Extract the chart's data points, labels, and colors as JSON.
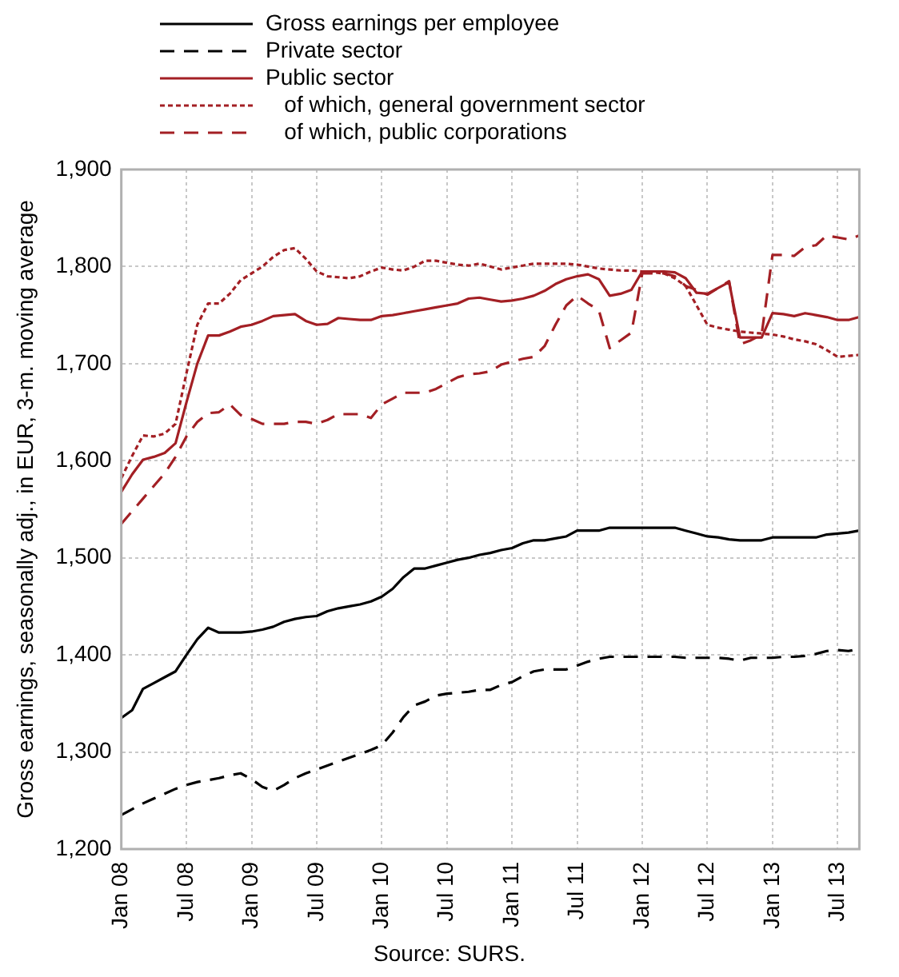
{
  "chart_data": {
    "type": "line",
    "ylabel": "Gross earnings, seasonally adj., in EUR, 3-m. moving average",
    "annotations": [
      "Source: SURS."
    ],
    "categories": [
      "Jan 08",
      null,
      null,
      null,
      null,
      null,
      "Jul 08",
      null,
      null,
      null,
      null,
      null,
      "Jan 09",
      null,
      null,
      null,
      null,
      null,
      "Jul 09",
      null,
      null,
      null,
      null,
      null,
      "Jan 10",
      null,
      null,
      null,
      null,
      null,
      "Jul 10",
      null,
      null,
      null,
      null,
      null,
      "Jan 11",
      null,
      null,
      null,
      null,
      null,
      "Jul 11",
      null,
      null,
      null,
      null,
      null,
      "Jan 12",
      null,
      null,
      null,
      null,
      null,
      "Jul 12",
      null,
      null,
      null,
      null,
      null,
      "Jan 13",
      null,
      null,
      null,
      null,
      null,
      "Jul 13",
      null,
      null
    ],
    "ylim": [
      1200,
      1900
    ],
    "yticks": [
      {
        "value": 1200,
        "label": "1,200"
      },
      {
        "value": 1300,
        "label": "1,300"
      },
      {
        "value": 1400,
        "label": "1,400"
      },
      {
        "value": 1500,
        "label": "1,500"
      },
      {
        "value": 1600,
        "label": "1,600"
      },
      {
        "value": 1700,
        "label": "1,700"
      },
      {
        "value": 1800,
        "label": "1,800"
      },
      {
        "value": 1900,
        "label": "1,900"
      }
    ],
    "grid": true,
    "legend": "top left",
    "marker": "none",
    "series": [
      {
        "name": "Gross earnings per employee",
        "color": "#000000",
        "line_style": "solid",
        "values": [
          1335,
          1343,
          1365,
          1371,
          1377,
          1383,
          1400,
          1416,
          1428,
          1423,
          1423,
          1423,
          1424,
          1426,
          1429,
          1434,
          1437,
          1439,
          1440,
          1445,
          1448,
          1450,
          1452,
          1455,
          1460,
          1468,
          1480,
          1489,
          1489,
          1492,
          1495,
          1498,
          1500,
          1503,
          1505,
          1508,
          1510,
          1515,
          1518,
          1518,
          1520,
          1522,
          1528,
          1528,
          1528,
          1531,
          1531,
          1531,
          1531,
          1531,
          1531,
          1531,
          1528,
          1525,
          1522,
          1521,
          1519,
          1518,
          1518,
          1518,
          1521,
          1521,
          1521,
          1521,
          1521,
          1524,
          1525,
          1526,
          1528
        ]
      },
      {
        "name": "Private sector",
        "color": "#000000",
        "line_style": "dashed",
        "values": [
          1235,
          1241,
          1247,
          1252,
          1257,
          1262,
          1266,
          1269,
          1271,
          1273,
          1276,
          1278,
          1272,
          1264,
          1260,
          1266,
          1273,
          1278,
          1282,
          1286,
          1290,
          1294,
          1298,
          1302,
          1307,
          1320,
          1336,
          1348,
          1352,
          1358,
          1360,
          1361,
          1362,
          1364,
          1364,
          1369,
          1372,
          1378,
          1383,
          1385,
          1385,
          1385,
          1389,
          1393,
          1396,
          1398,
          1398,
          1398,
          1398,
          1398,
          1398,
          1398,
          1397,
          1397,
          1397,
          1397,
          1396,
          1394,
          1397,
          1397,
          1397,
          1398,
          1398,
          1399,
          1401,
          1404,
          1405,
          1404,
          1406
        ]
      },
      {
        "name": "Public sector",
        "color": "#a31f24",
        "line_style": "solid",
        "values": [
          1568,
          1586,
          1601,
          1604,
          1608,
          1618,
          1660,
          1700,
          1729,
          1729,
          1733,
          1738,
          1740,
          1744,
          1749,
          1750,
          1751,
          1744,
          1740,
          1741,
          1747,
          1746,
          1745,
          1745,
          1749,
          1750,
          1752,
          1754,
          1756,
          1758,
          1760,
          1762,
          1767,
          1768,
          1766,
          1764,
          1765,
          1767,
          1770,
          1775,
          1782,
          1787,
          1790,
          1792,
          1787,
          1770,
          1772,
          1776,
          1795,
          1795,
          1795,
          1794,
          1788,
          1773,
          1772,
          1778,
          1784,
          1727,
          1727,
          1727,
          1752,
          1751,
          1749,
          1752,
          1750,
          1748,
          1745,
          1745,
          1748
        ]
      },
      {
        "name": "   of which, general government sector",
        "color": "#a31f24",
        "line_style": "dotted",
        "values": [
          1582,
          1605,
          1626,
          1625,
          1628,
          1638,
          1690,
          1740,
          1762,
          1762,
          1772,
          1786,
          1793,
          1800,
          1810,
          1817,
          1819,
          1808,
          1795,
          1790,
          1789,
          1788,
          1790,
          1795,
          1799,
          1797,
          1796,
          1800,
          1806,
          1806,
          1804,
          1802,
          1801,
          1803,
          1800,
          1797,
          1799,
          1801,
          1803,
          1803,
          1803,
          1803,
          1802,
          1800,
          1798,
          1797,
          1796,
          1796,
          1795,
          1794,
          1793,
          1788,
          1780,
          1760,
          1740,
          1737,
          1735,
          1733,
          1732,
          1731,
          1730,
          1728,
          1725,
          1723,
          1720,
          1714,
          1707,
          1708,
          1709
        ]
      },
      {
        "name": "   of which, public corporations",
        "color": "#a31f24",
        "line_style": "dashed",
        "values": [
          1535,
          1548,
          1561,
          1574,
          1587,
          1604,
          1625,
          1640,
          1649,
          1650,
          1658,
          1647,
          1643,
          1638,
          1638,
          1638,
          1640,
          1640,
          1638,
          1642,
          1648,
          1648,
          1648,
          1644,
          1658,
          1664,
          1670,
          1670,
          1670,
          1674,
          1680,
          1686,
          1689,
          1690,
          1692,
          1699,
          1702,
          1705,
          1707,
          1718,
          1740,
          1760,
          1770,
          1762,
          1755,
          1716,
          1724,
          1732,
          1793,
          1793,
          1793,
          1790,
          1780,
          1776,
          1771,
          1778,
          1785,
          1720,
          1724,
          1730,
          1812,
          1812,
          1811,
          1820,
          1822,
          1832,
          1830,
          1828,
          1832
        ]
      }
    ]
  }
}
